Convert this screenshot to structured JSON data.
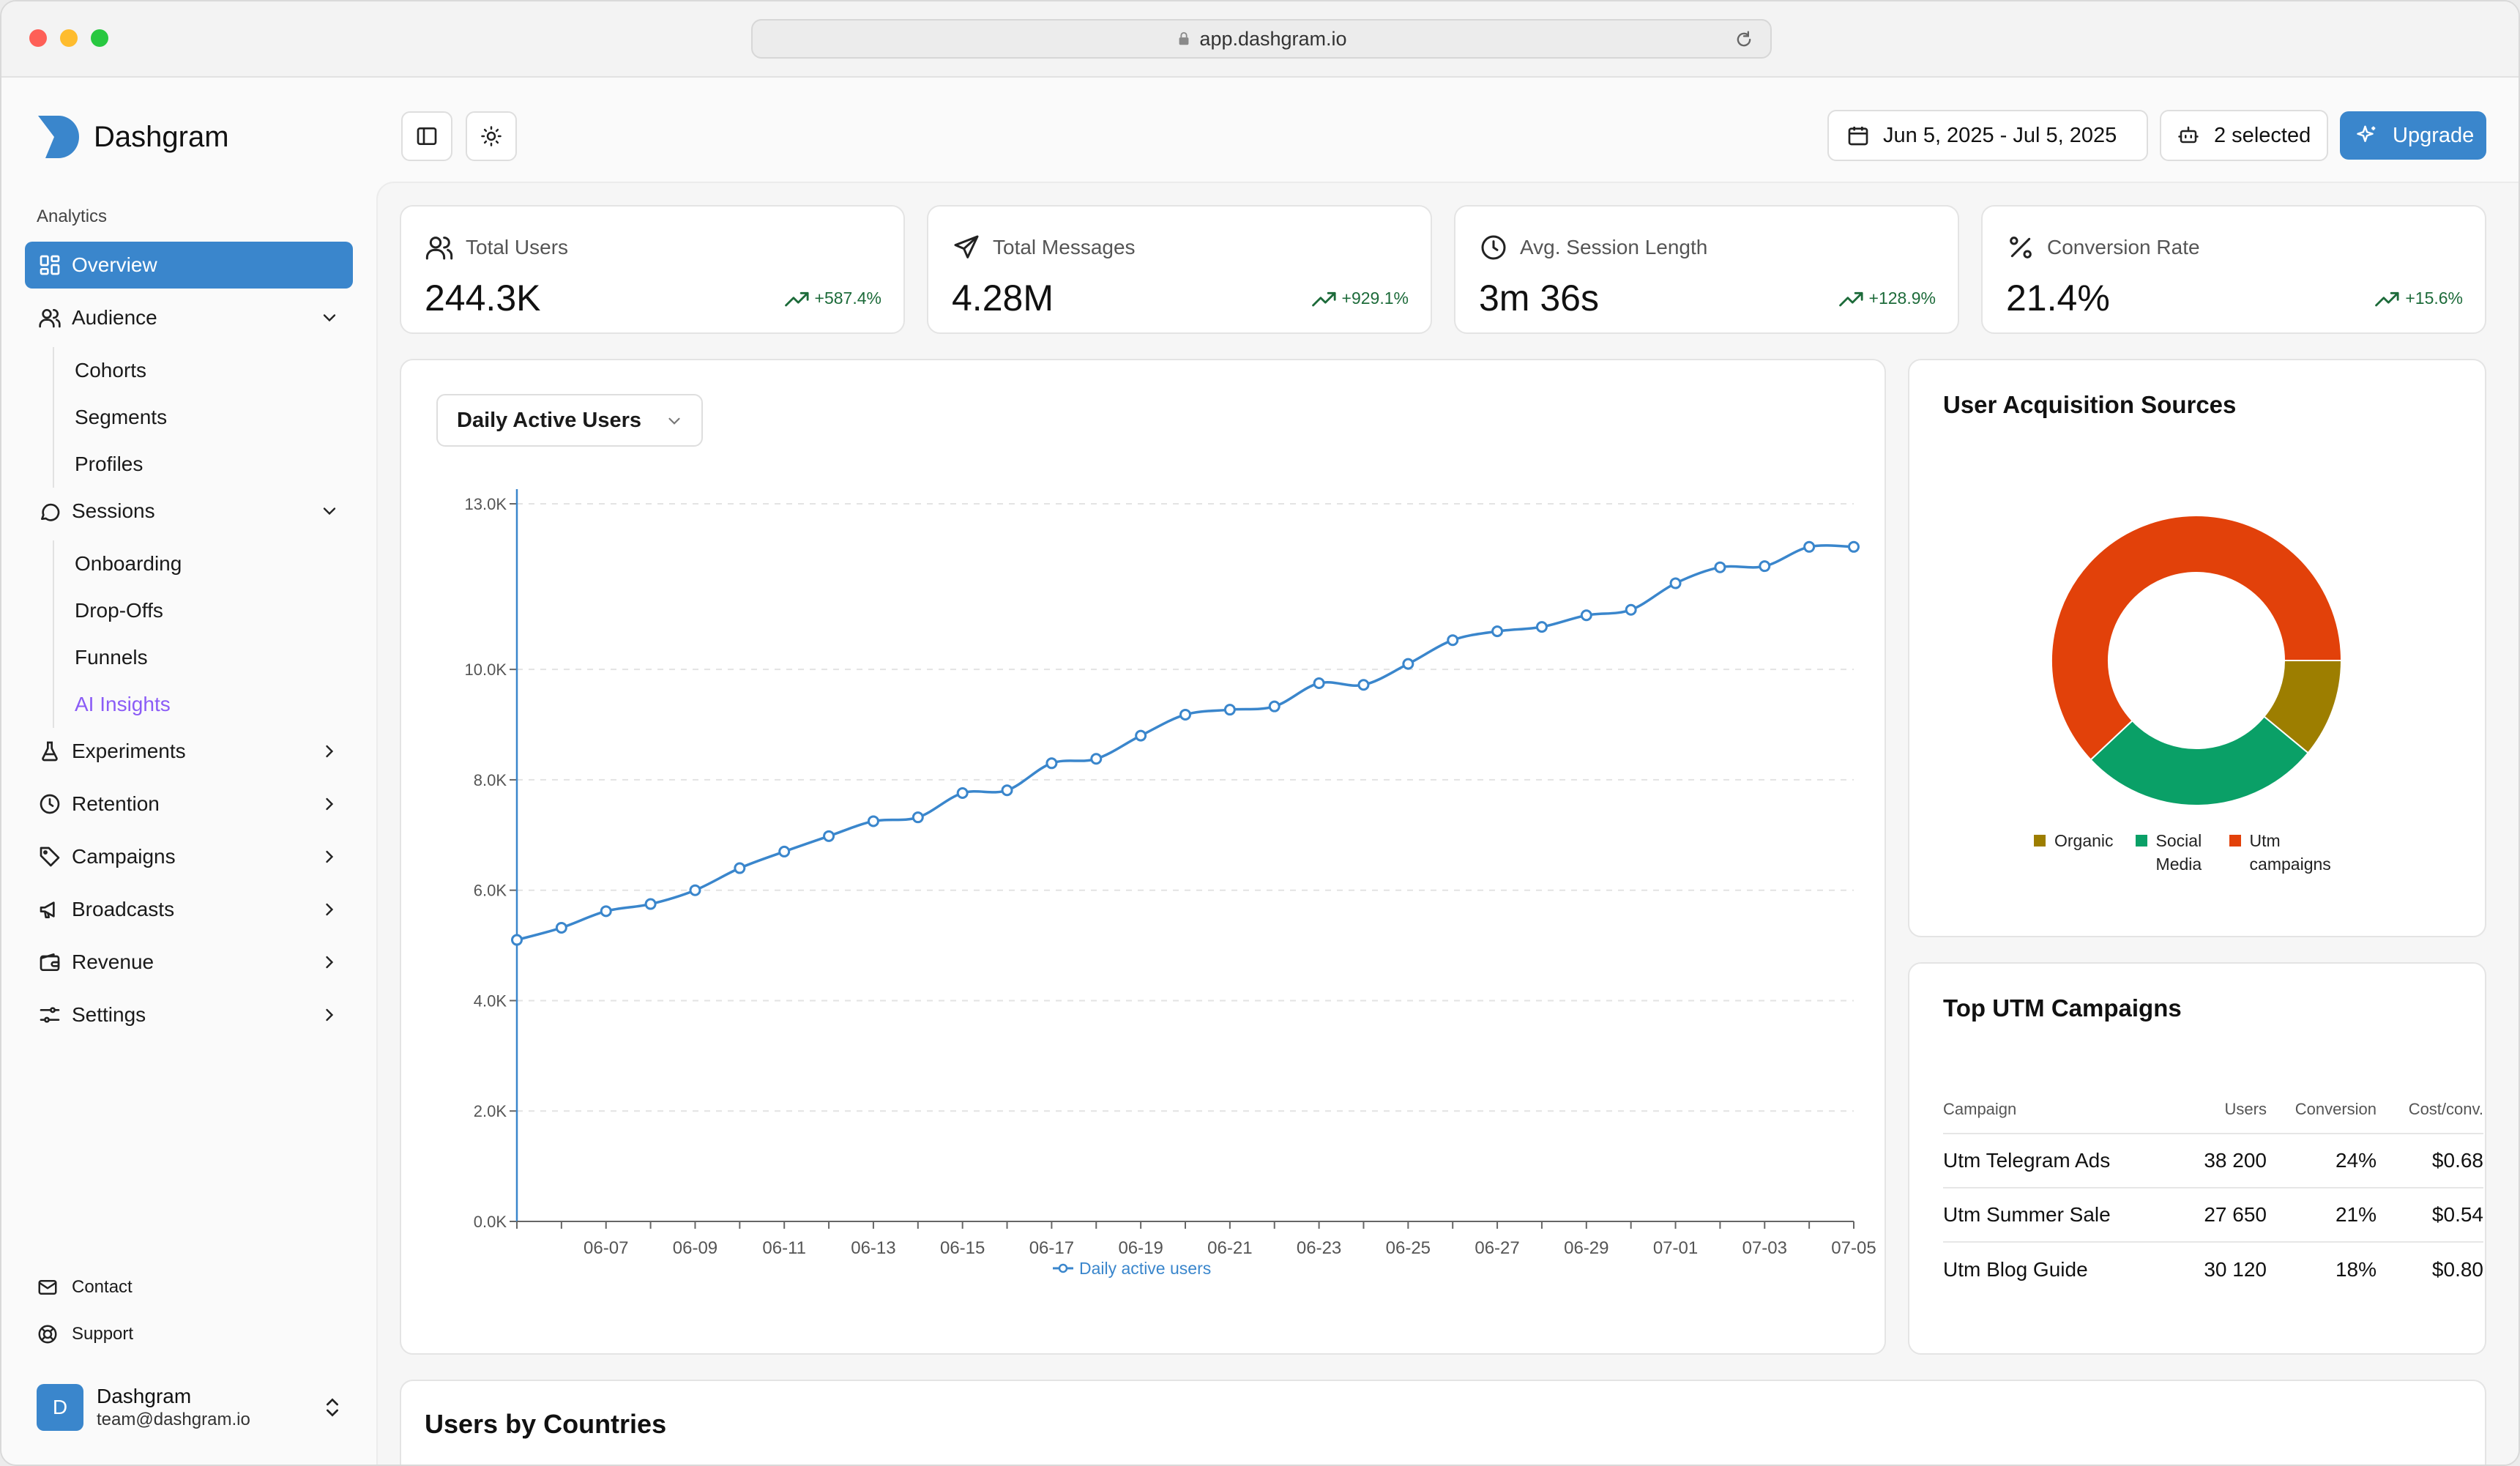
{
  "browser": {
    "url": "app.dashgram.io"
  },
  "brand": {
    "name": "Dashgram"
  },
  "sidebar": {
    "section_label": "Analytics",
    "items": [
      {
        "label": "Overview",
        "icon": "grid-icon",
        "active": true
      },
      {
        "label": "Audience",
        "icon": "users-icon",
        "expanded": true,
        "children": [
          "Cohorts",
          "Segments",
          "Profiles"
        ]
      },
      {
        "label": "Sessions",
        "icon": "chat-icon",
        "expanded": true,
        "children": [
          "Onboarding",
          "Drop-Offs",
          "Funnels",
          "AI Insights"
        ]
      },
      {
        "label": "Experiments",
        "icon": "flask-icon"
      },
      {
        "label": "Retention",
        "icon": "history-icon"
      },
      {
        "label": "Campaigns",
        "icon": "tag-icon"
      },
      {
        "label": "Broadcasts",
        "icon": "megaphone-icon"
      },
      {
        "label": "Revenue",
        "icon": "wallet-icon"
      },
      {
        "label": "Settings",
        "icon": "sliders-icon"
      }
    ],
    "footer_links": [
      {
        "label": "Contact",
        "icon": "mail-icon"
      },
      {
        "label": "Support",
        "icon": "lifebuoy-icon"
      }
    ],
    "user": {
      "avatar_letter": "D",
      "name": "Dashgram",
      "email": "team@dashgram.io"
    }
  },
  "toolbar": {
    "date_range": "Jun 5, 2025 - Jul 5, 2025",
    "selection": "2 selected",
    "upgrade_label": "Upgrade"
  },
  "stats": [
    {
      "title": "Total Users",
      "value": "244.3K",
      "change": "+587.4%",
      "icon": "users-icon"
    },
    {
      "title": "Total Messages",
      "value": "4.28M",
      "change": "+929.1%",
      "icon": "send-icon"
    },
    {
      "title": "Avg. Session Length",
      "value": "3m 36s",
      "change": "+128.9%",
      "icon": "clock-icon"
    },
    {
      "title": "Conversion Rate",
      "value": "21.4%",
      "change": "+15.6%",
      "icon": "percent-icon"
    }
  ],
  "main_chart": {
    "metric_select": "Daily Active Users"
  },
  "chart_data": [
    {
      "type": "line",
      "title": "",
      "xlabel": "",
      "ylabel": "",
      "ylim": [
        0,
        13000
      ],
      "y_ticks": [
        "0.0K",
        "2.0K",
        "4.0K",
        "6.0K",
        "8.0K",
        "10.0K",
        "13.0K"
      ],
      "x_ticks": [
        "06-07",
        "06-09",
        "06-11",
        "06-13",
        "06-15",
        "06-17",
        "06-19",
        "06-21",
        "06-23",
        "06-25",
        "06-27",
        "06-29",
        "07-01",
        "07-03",
        "07-05"
      ],
      "x": [
        "06-05",
        "06-06",
        "06-07",
        "06-08",
        "06-09",
        "06-10",
        "06-11",
        "06-12",
        "06-13",
        "06-14",
        "06-15",
        "06-16",
        "06-17",
        "06-18",
        "06-19",
        "06-20",
        "06-21",
        "06-22",
        "06-23",
        "06-24",
        "06-25",
        "06-26",
        "06-27",
        "06-28",
        "06-29",
        "06-30",
        "07-01",
        "07-02",
        "07-03",
        "07-04",
        "07-05"
      ],
      "series": [
        {
          "name": "Daily active users",
          "color": "#3a86cc",
          "values": [
            5100,
            5320,
            5620,
            5750,
            6000,
            6400,
            6700,
            6980,
            7250,
            7320,
            7760,
            7810,
            8300,
            8380,
            8800,
            9180,
            9270,
            9330,
            9750,
            9720,
            10100,
            10530,
            10690,
            10770,
            10980,
            11080,
            11560,
            11850,
            11870,
            12220,
            12220
          ]
        }
      ],
      "grid": true,
      "legend": "bottom"
    },
    {
      "type": "pie",
      "title": "User Acquisition Sources",
      "categories": [
        "Organic",
        "Social Media",
        "Utm campaigns"
      ],
      "values": [
        11,
        27,
        62
      ],
      "colors": [
        "#9d7e00",
        "#0aa067",
        "#e2410a"
      ],
      "legend": "bottom"
    }
  ],
  "utm_campaigns": {
    "title": "Top UTM Campaigns",
    "columns": [
      "Campaign",
      "Users",
      "Conversion",
      "Cost/conv."
    ],
    "rows": [
      [
        "Utm Telegram Ads",
        "38 200",
        "24%",
        "$0.68"
      ],
      [
        "Utm Summer Sale",
        "27 650",
        "21%",
        "$0.54"
      ],
      [
        "Utm Blog Guide",
        "30 120",
        "18%",
        "$0.80"
      ]
    ]
  },
  "countries": {
    "title": "Users by Countries"
  }
}
